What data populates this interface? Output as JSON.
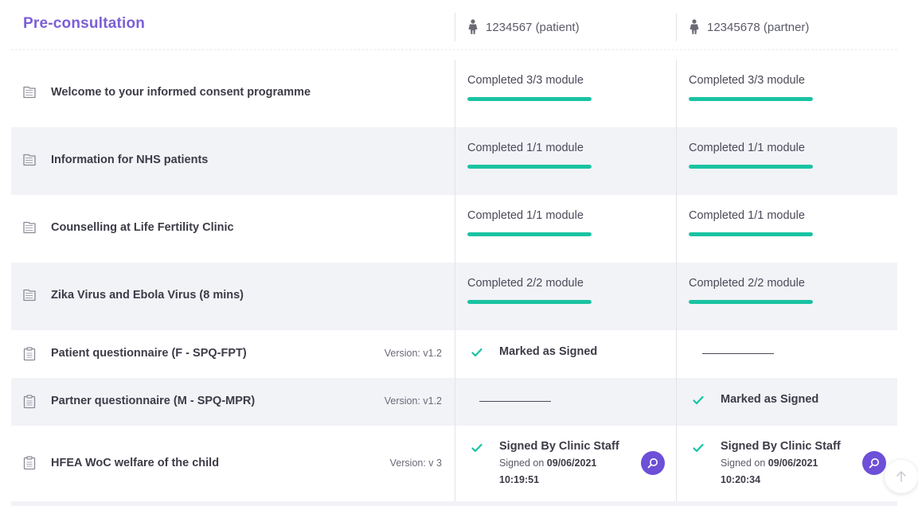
{
  "header": {
    "title": "Pre-consultation",
    "patient_label": "1234567 (patient)",
    "partner_label": "12345678 (partner)"
  },
  "modules": [
    {
      "label": "Welcome to your informed consent programme",
      "patient": {
        "text": "Completed 3/3 module",
        "progress": 1.0
      },
      "partner": {
        "text": "Completed 3/3 module",
        "progress": 1.0
      }
    },
    {
      "label": "Information for NHS patients",
      "patient": {
        "text": "Completed 1/1 module",
        "progress": 1.0
      },
      "partner": {
        "text": "Completed 1/1 module",
        "progress": 1.0
      }
    },
    {
      "label": "Counselling at Life Fertility Clinic",
      "patient": {
        "text": "Completed 1/1 module",
        "progress": 1.0
      },
      "partner": {
        "text": "Completed 1/1 module",
        "progress": 1.0
      }
    },
    {
      "label": "Zika Virus and Ebola Virus (8 mins)",
      "patient": {
        "text": "Completed 2/2 module",
        "progress": 1.0
      },
      "partner": {
        "text": "Completed 2/2 module",
        "progress": 1.0
      }
    }
  ],
  "forms": [
    {
      "label": "Patient questionnaire (F - SPQ-FPT)",
      "version": "Version: v1.2",
      "patient_status": "Marked as Signed"
    },
    {
      "label": "Partner questionnaire (M - SPQ-MPR)",
      "version": "Version: v1.2",
      "partner_status": "Marked as Signed"
    },
    {
      "label": "HFEA WoC welfare of the child",
      "version": "Version: v 3",
      "patient": {
        "status": "Signed By Clinic Staff",
        "signed_on_label": "Signed on",
        "date": "09/06/2021",
        "time": "10:19:51"
      },
      "partner": {
        "status": "Signed By Clinic Staff",
        "signed_on_label": "Signed on",
        "date": "09/06/2021",
        "time": "10:20:34"
      }
    }
  ],
  "colors": {
    "accent": "#7b5fd6",
    "progress": "#19c3a2",
    "check": "#19c3a2",
    "button": "#6d4fd8"
  },
  "icons": {
    "module": "module-folder-icon",
    "form": "clipboard-icon",
    "person": "person-icon",
    "view": "search-icon",
    "scroll": "arrow-up-icon"
  }
}
